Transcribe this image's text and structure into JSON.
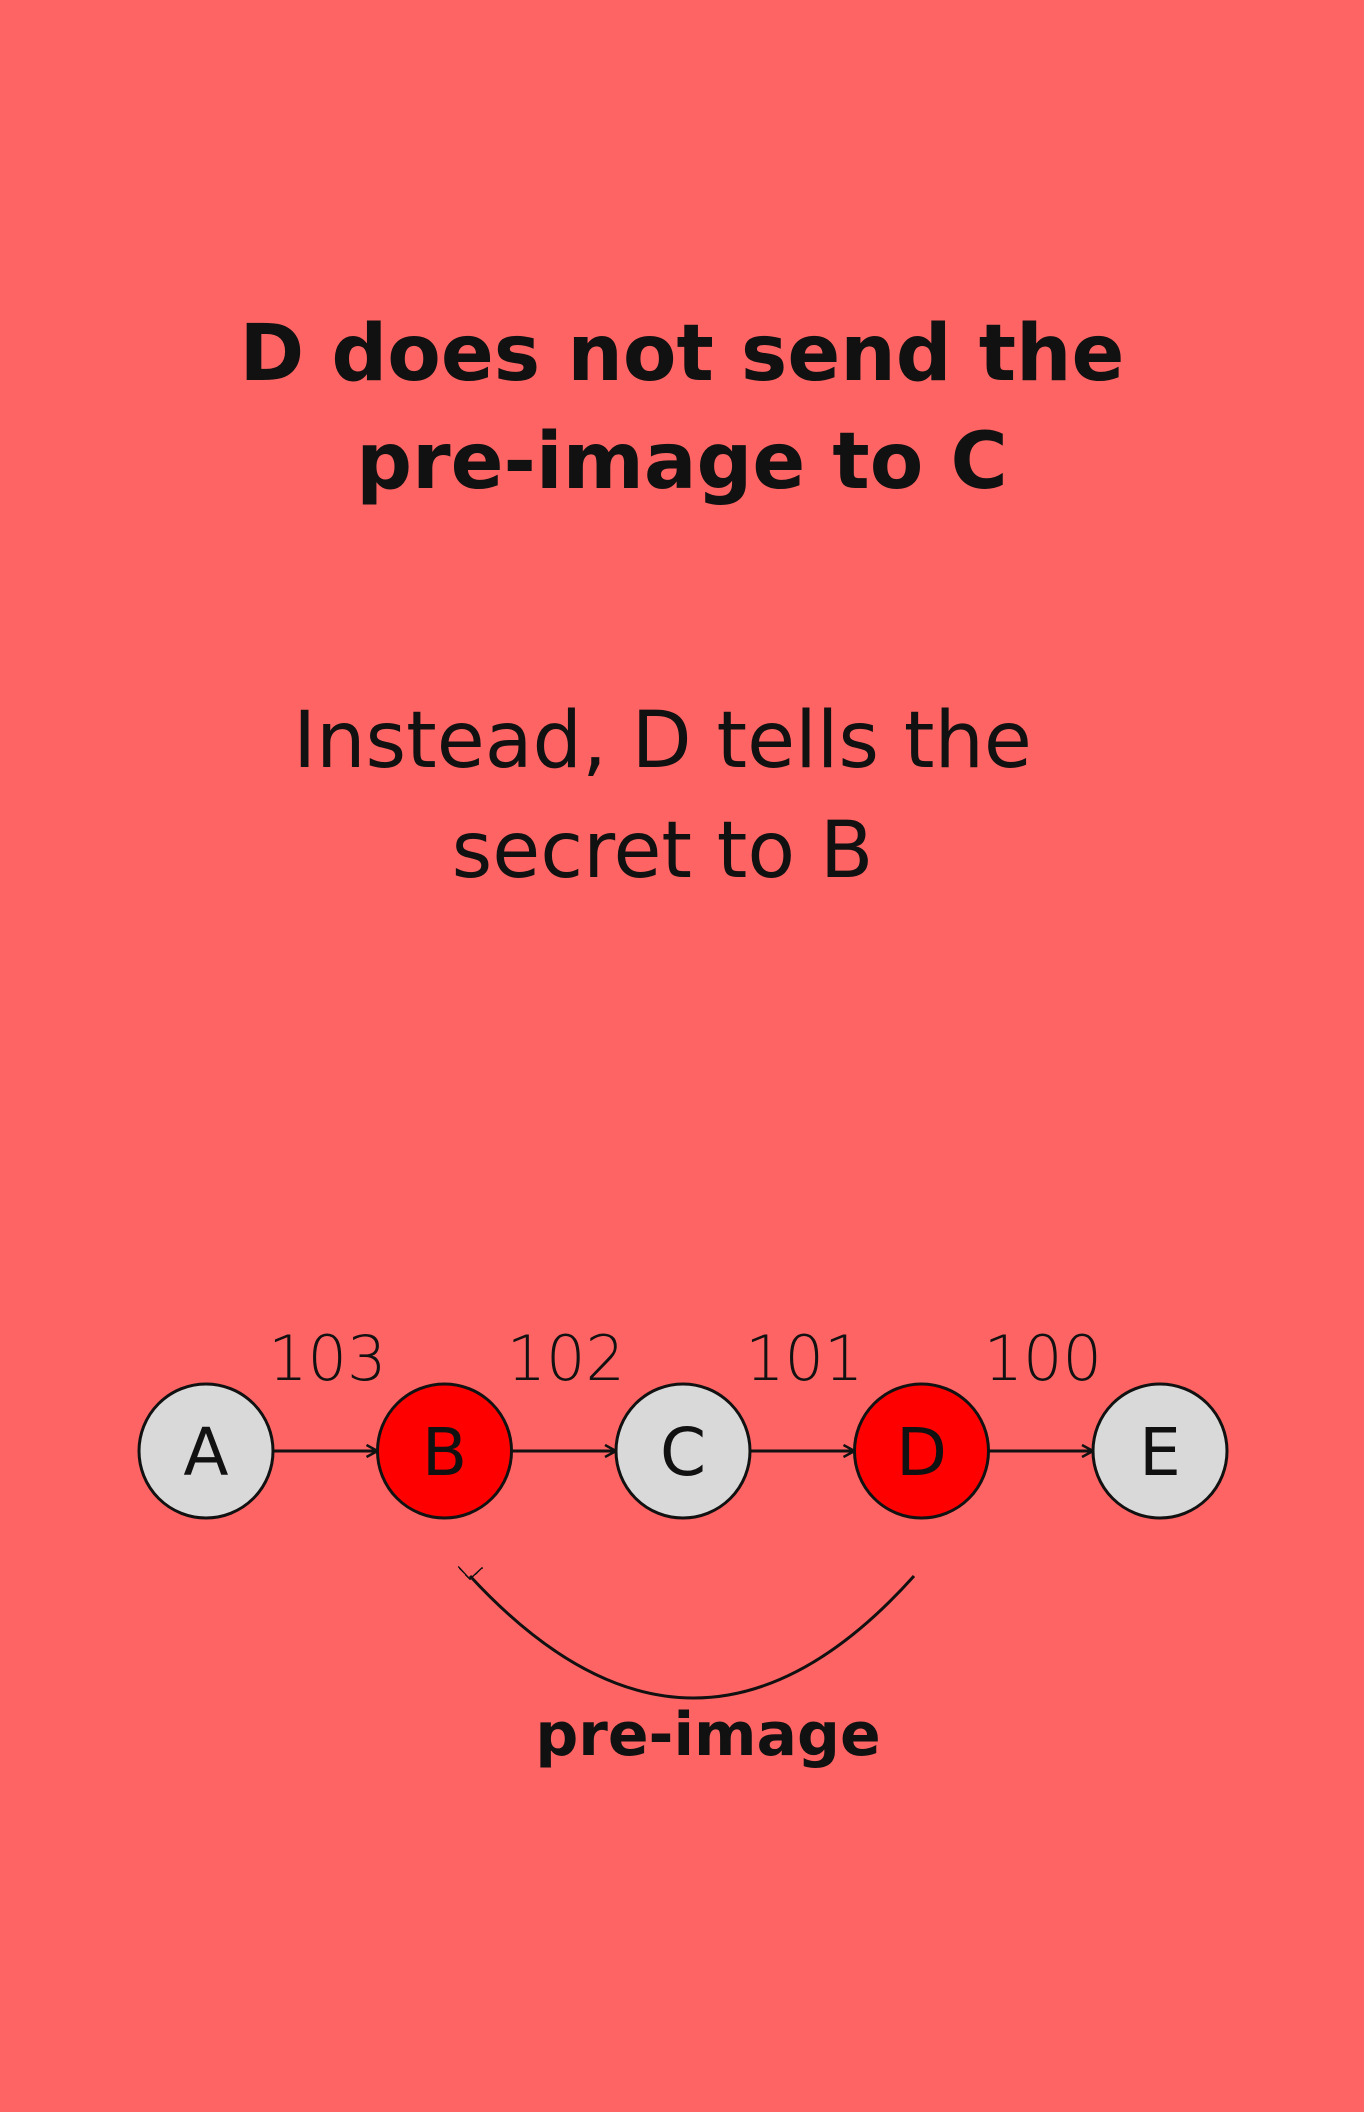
{
  "heading": {
    "line1": "D does not send the",
    "line2": "pre-image to C"
  },
  "subheading": {
    "line1": "Instead, D tells the",
    "line2": "secret to B"
  },
  "colors": {
    "background": "#ff6464",
    "node_default": "#d9d9d9",
    "node_highlight": "#ff0000",
    "stroke": "#111111"
  },
  "diagram": {
    "nodes": [
      {
        "label": "A",
        "highlight": false
      },
      {
        "label": "B",
        "highlight": true
      },
      {
        "label": "C",
        "highlight": false
      },
      {
        "label": "D",
        "highlight": true
      },
      {
        "label": "E",
        "highlight": false
      }
    ],
    "edges": [
      {
        "from": "A",
        "to": "B",
        "label": "103"
      },
      {
        "from": "B",
        "to": "C",
        "label": "102"
      },
      {
        "from": "C",
        "to": "D",
        "label": "101"
      },
      {
        "from": "D",
        "to": "E",
        "label": "100"
      }
    ],
    "back_arc": {
      "from": "D",
      "to": "B",
      "label": "pre-image"
    }
  }
}
